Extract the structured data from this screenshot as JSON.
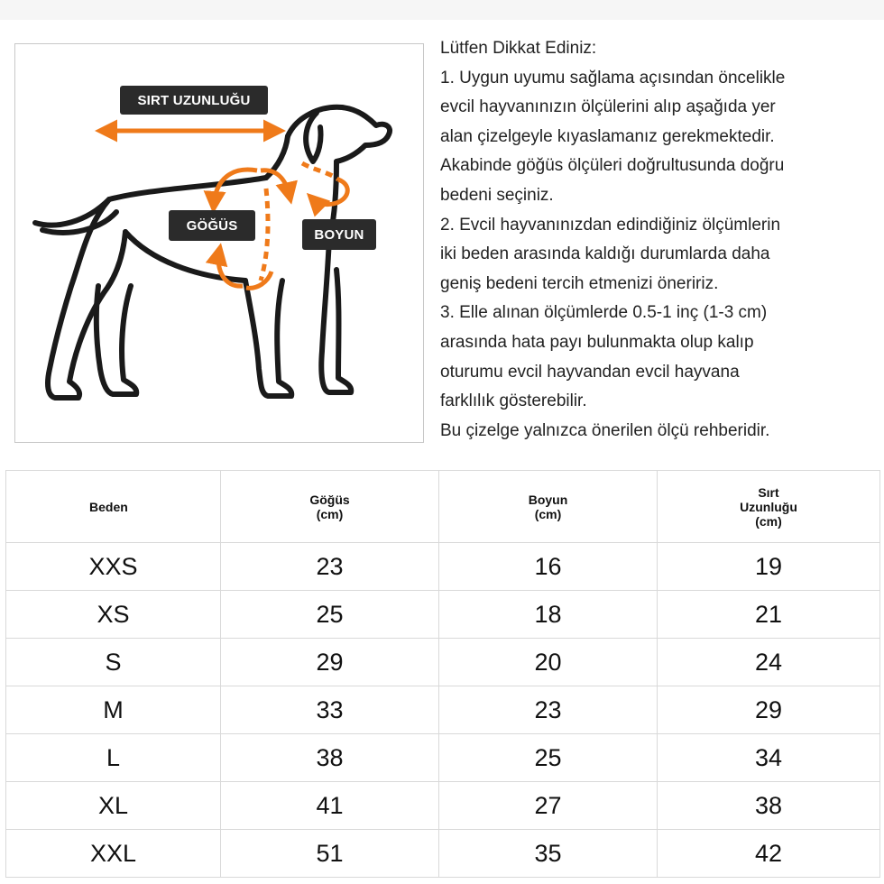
{
  "diagram": {
    "labels": {
      "back_length": "SIRT UZUNLUĞU",
      "chest": "GÖĞÜS",
      "neck": "BOYUN"
    },
    "colors": {
      "outline": "#1a1a1a",
      "arrow": "#ef7a1a",
      "label_bg": "#2b2b2b"
    }
  },
  "notes": {
    "lines": [
      "Lütfen Dikkat Ediniz:",
      "1. Uygun uyumu sağlama açısından öncelikle",
      "evcil hayvanınızın ölçülerini alıp aşağıda yer",
      "alan çizelgeyle kıyaslamanız gerekmektedir.",
      "Akabinde göğüs ölçüleri doğrultusunda doğru",
      "bedeni seçiniz.",
      "2. Evcil hayvanınızdan edindiğiniz ölçümlerin",
      "iki beden arasında kaldığı durumlarda daha",
      "geniş bedeni tercih etmenizi öneririz.",
      "3. Elle alınan ölçümlerde 0.5-1 inç (1-3 cm)",
      "arasında hata payı bulunmakta olup kalıp",
      "oturumu evcil hayvandan evcil hayvana",
      "farklılık gösterebilir.",
      "Bu çizelge yalnızca önerilen ölçü rehberidir."
    ]
  },
  "table": {
    "headers": [
      [
        "Beden"
      ],
      [
        "Göğüs",
        "(cm)"
      ],
      [
        "Boyun",
        "(cm)"
      ],
      [
        "Sırt",
        "Uzunluğu",
        "(cm)"
      ]
    ],
    "rows": [
      [
        "XXS",
        "23",
        "16",
        "19"
      ],
      [
        "XS",
        "25",
        "18",
        "21"
      ],
      [
        "S",
        "29",
        "20",
        "24"
      ],
      [
        "M",
        "33",
        "23",
        "29"
      ],
      [
        "L",
        "38",
        "25",
        "34"
      ],
      [
        "XL",
        "41",
        "27",
        "38"
      ],
      [
        "XXL",
        "51",
        "35",
        "42"
      ]
    ]
  }
}
